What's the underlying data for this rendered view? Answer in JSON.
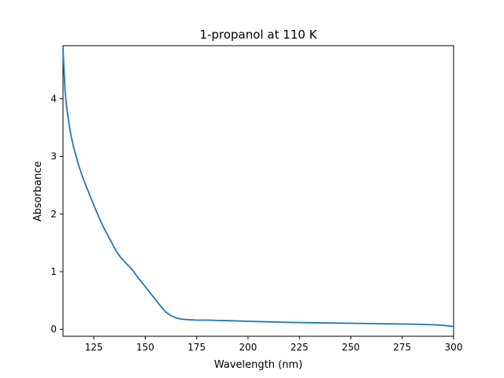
{
  "chart_data": {
    "type": "line",
    "title": "1-propanol at 110 K",
    "xlabel": "Wavelength (nm)",
    "ylabel": "Absorbance",
    "xlim": [
      110,
      300
    ],
    "ylim": [
      -0.12,
      4.92
    ],
    "xticks": [
      125,
      150,
      175,
      200,
      225,
      250,
      275,
      300
    ],
    "yticks": [
      0,
      1,
      2,
      3,
      4
    ],
    "grid": false,
    "series": [
      {
        "color": "#1f77b4",
        "x": [
          110,
          110.5,
          111,
          111.5,
          112,
          113,
          114,
          115,
          116,
          118,
          120,
          122,
          125,
          128,
          130,
          133,
          136,
          138,
          140,
          142,
          144,
          146,
          148,
          150,
          152,
          154,
          156,
          158,
          160,
          162,
          163,
          165,
          167,
          170,
          175,
          180,
          185,
          190,
          200,
          210,
          220,
          230,
          240,
          250,
          260,
          270,
          280,
          290,
          295,
          300
        ],
        "y": [
          4.88,
          4.5,
          4.15,
          3.95,
          3.8,
          3.55,
          3.35,
          3.18,
          3.05,
          2.8,
          2.6,
          2.42,
          2.15,
          1.9,
          1.75,
          1.55,
          1.35,
          1.25,
          1.17,
          1.1,
          1.02,
          0.92,
          0.83,
          0.74,
          0.65,
          0.56,
          0.47,
          0.38,
          0.3,
          0.25,
          0.23,
          0.2,
          0.18,
          0.17,
          0.16,
          0.16,
          0.155,
          0.15,
          0.14,
          0.13,
          0.12,
          0.115,
          0.11,
          0.105,
          0.1,
          0.095,
          0.09,
          0.08,
          0.07,
          0.05
        ]
      }
    ]
  }
}
